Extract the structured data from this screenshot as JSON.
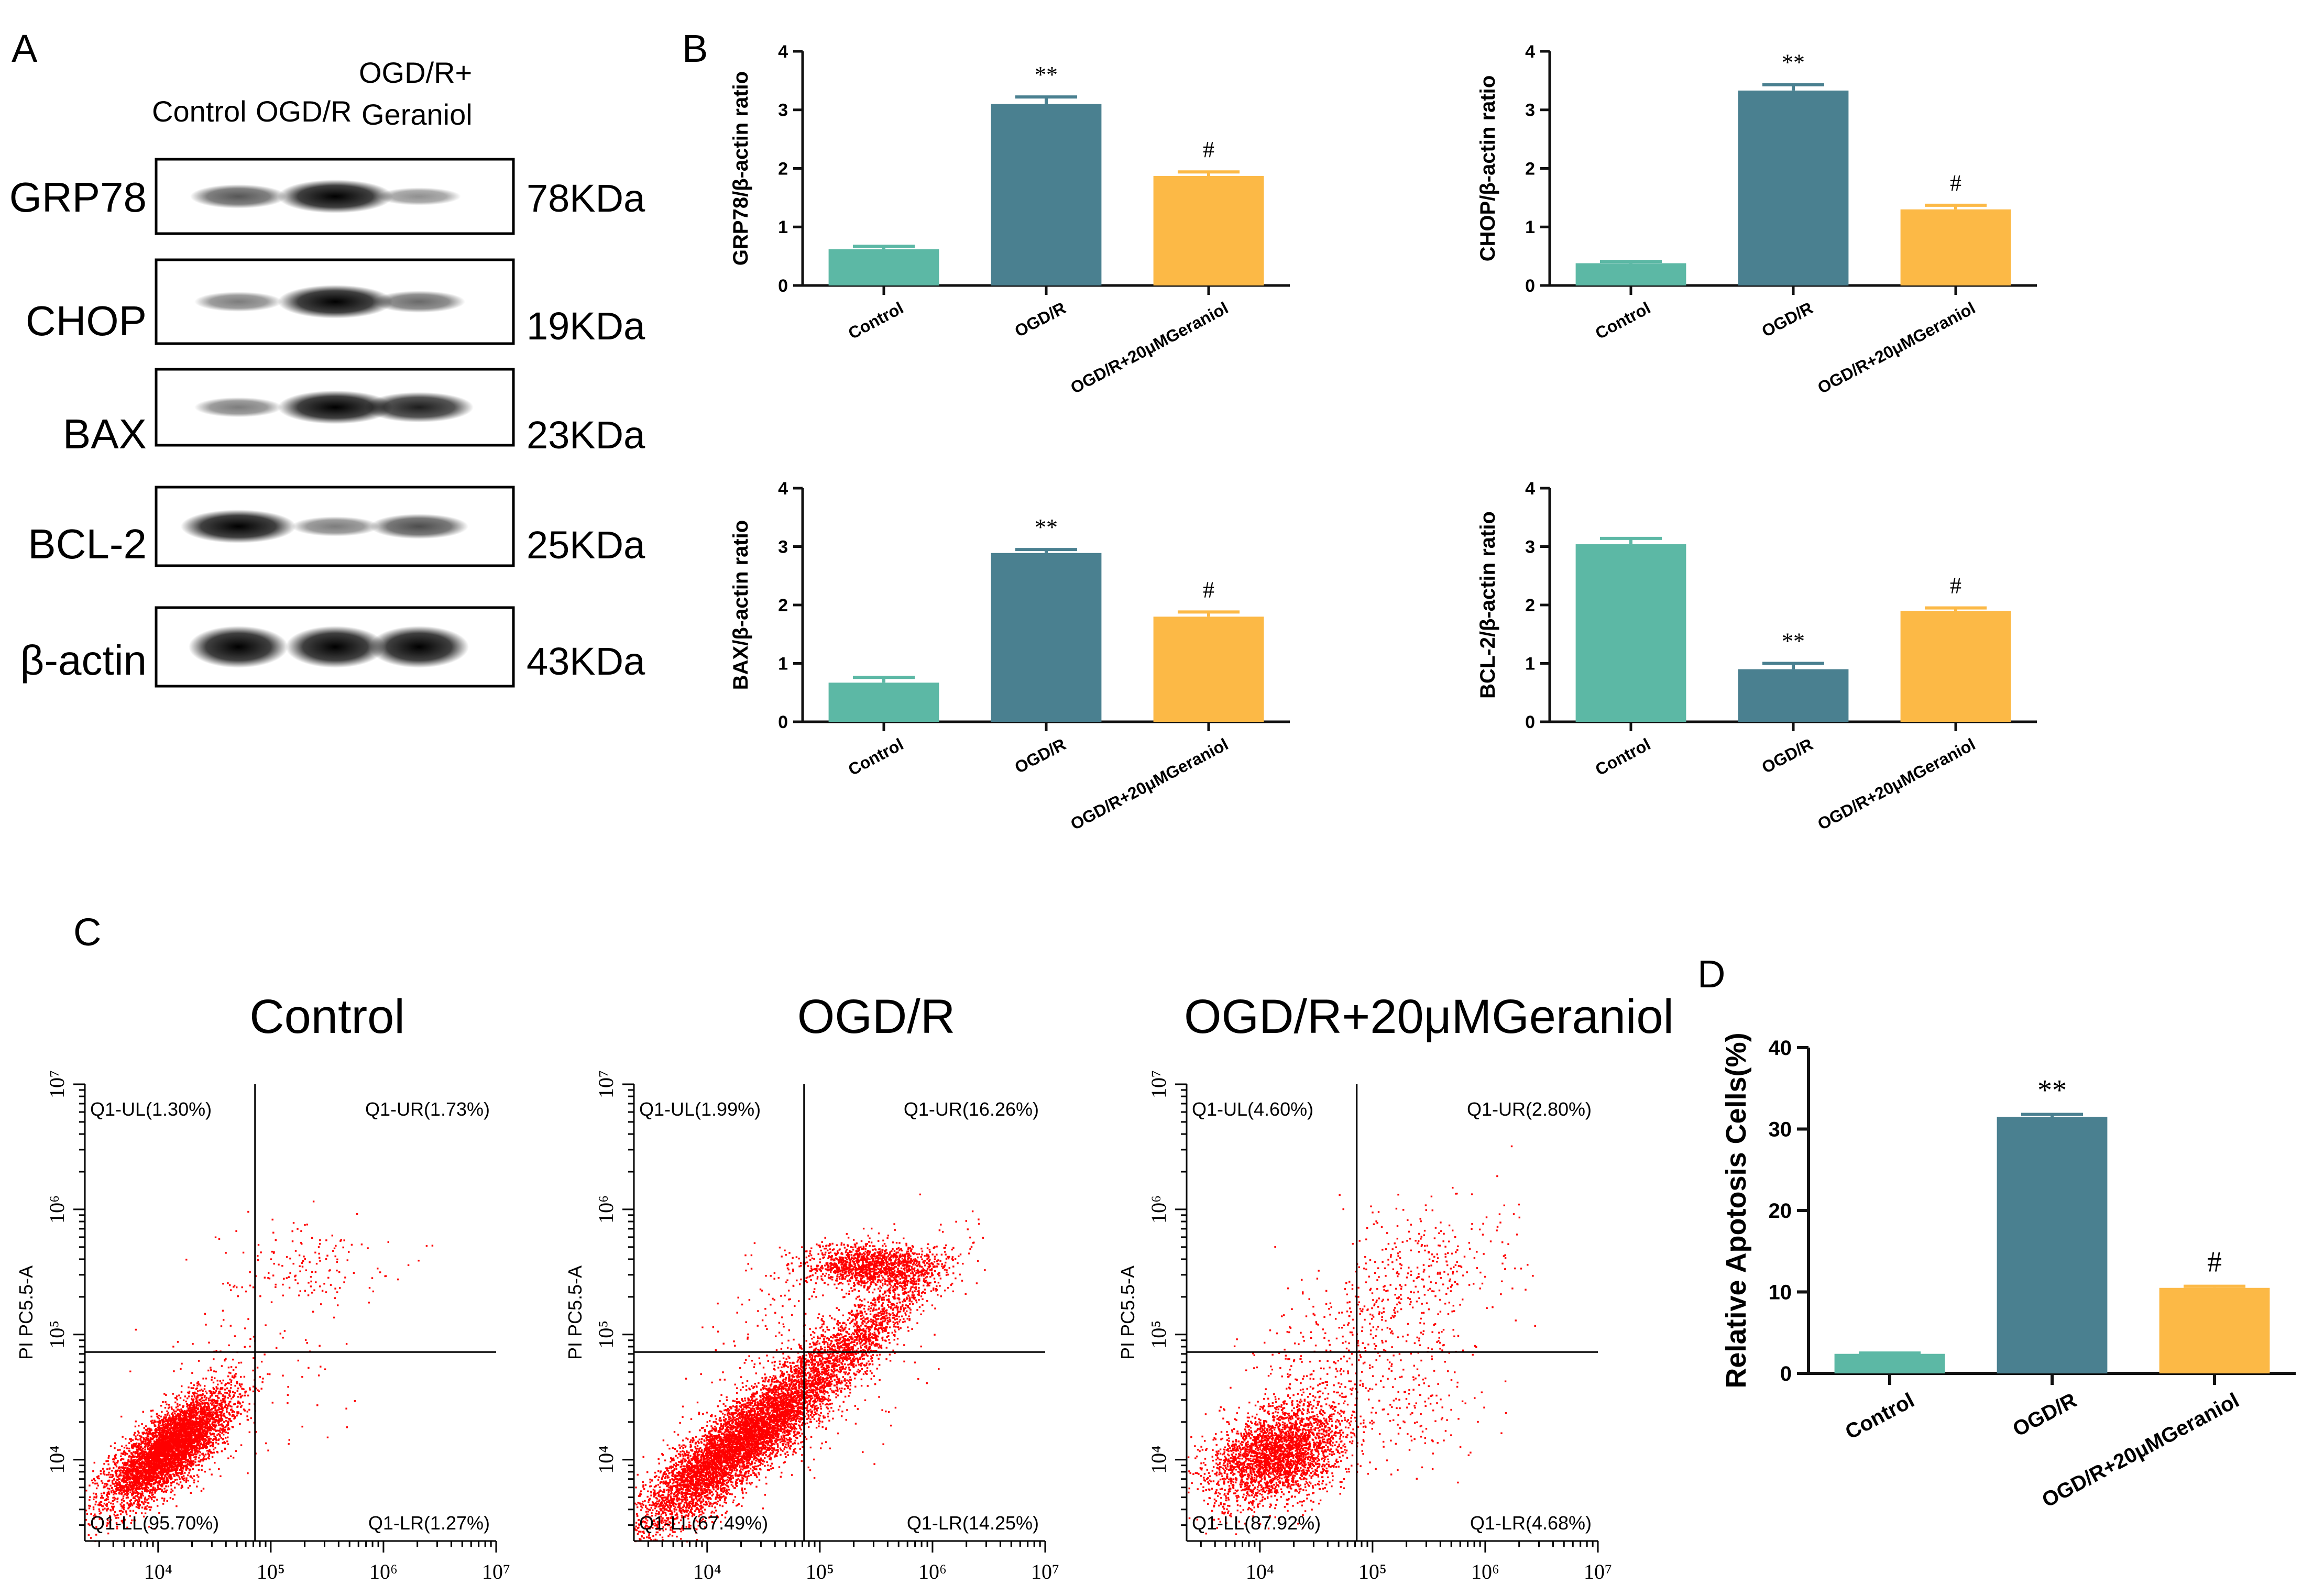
{
  "panel_letters": [
    "A",
    "B",
    "C",
    "D"
  ],
  "colors": {
    "control": "#5cb8a5",
    "ogdr": "#4a8090",
    "geraniol": "#fcb946",
    "dots": "#ff0000",
    "axis": "#111111"
  },
  "western_blot": {
    "lanes": [
      "Control",
      "OGD/R",
      "OGD/R+",
      "Geraniol"
    ],
    "bands": [
      {
        "protein": "GRP78",
        "weight": "78KDa",
        "intensity": [
          0.55,
          1.0,
          0.25
        ]
      },
      {
        "protein": "CHOP",
        "weight": "19KDa",
        "intensity": [
          0.35,
          1.0,
          0.45
        ]
      },
      {
        "protein": "BAX",
        "weight": "23KDa",
        "intensity": [
          0.35,
          1.0,
          0.85
        ]
      },
      {
        "protein": "BCL-2",
        "weight": "25KDa",
        "intensity": [
          1.0,
          0.35,
          0.6
        ]
      },
      {
        "protein": "β-actin",
        "weight": "43KDa",
        "intensity": [
          1.0,
          1.0,
          1.0
        ]
      }
    ]
  },
  "chart_data": [
    {
      "type": "bar",
      "ylabel": "GRP78/β-actin ratio",
      "categories": [
        "Control",
        "OGD/R",
        "OGD/R+20μMGeraniol"
      ],
      "values": [
        0.62,
        3.1,
        1.87
      ],
      "errors": [
        0.05,
        0.12,
        0.07
      ],
      "marks": [
        "",
        "**",
        "#"
      ],
      "ylim": [
        0,
        4
      ],
      "yticks": [
        "0",
        "1",
        "2",
        "3",
        "4"
      ]
    },
    {
      "type": "bar",
      "ylabel": "CHOP/β-actin ratio",
      "categories": [
        "Control",
        "OGD/R",
        "OGD/R+20μMGeraniol"
      ],
      "values": [
        0.38,
        3.33,
        1.3
      ],
      "errors": [
        0.03,
        0.1,
        0.07
      ],
      "marks": [
        "",
        "**",
        "#"
      ],
      "ylim": [
        0,
        4
      ],
      "yticks": [
        "0",
        "1",
        "2",
        "3",
        "4"
      ]
    },
    {
      "type": "bar",
      "ylabel": "BAX/β-actin ratio",
      "categories": [
        "Control",
        "OGD/R",
        "OGD/R+20μMGeraniol"
      ],
      "values": [
        0.67,
        2.89,
        1.8
      ],
      "errors": [
        0.09,
        0.06,
        0.08
      ],
      "marks": [
        "",
        "**",
        "#"
      ],
      "ylim": [
        0,
        4
      ],
      "yticks": [
        "0",
        "1",
        "2",
        "3",
        "4"
      ]
    },
    {
      "type": "bar",
      "ylabel": "BCL-2/β-actin ratio",
      "categories": [
        "Control",
        "OGD/R",
        "OGD/R+20μMGeraniol"
      ],
      "values": [
        3.04,
        0.9,
        1.9
      ],
      "errors": [
        0.1,
        0.1,
        0.05
      ],
      "marks": [
        "",
        "**",
        "#"
      ],
      "ylim": [
        0,
        4
      ],
      "yticks": [
        "0",
        "1",
        "2",
        "3",
        "4"
      ]
    },
    {
      "type": "bar",
      "ylabel": "Relative Apotosis Cells(%)",
      "categories": [
        "Control",
        "OGD/R",
        "OGD/R+20μMGeraniol"
      ],
      "values": [
        2.4,
        31.5,
        10.5
      ],
      "errors": [
        0.1,
        0.3,
        0.2
      ],
      "marks": [
        "",
        "**",
        "#"
      ],
      "ylim": [
        0,
        40
      ],
      "yticks": [
        "0",
        "10",
        "20",
        "30",
        "40"
      ]
    },
    {
      "type": "scatter",
      "title": "Control",
      "ylabel": "PI PC5.5-A",
      "xticks": [
        "10⁴",
        "10⁵",
        "10⁶",
        "10⁷"
      ],
      "yticks": [
        "10⁴",
        "10⁵",
        "10⁶",
        "10⁷"
      ],
      "quadrants": {
        "UL": "Q1-UL(1.30%)",
        "UR": "Q1-UR(1.73%)",
        "LL": "Q1-LL(95.70%)",
        "LR": "Q1-LR(1.27%)"
      },
      "populations": [
        {
          "x": 4.1,
          "y": 4.1,
          "sx": 0.27,
          "sy": 0.22,
          "rho": 0.75,
          "n": 5200
        },
        {
          "x": 5.3,
          "y": 5.6,
          "sx": 0.38,
          "sy": 0.16,
          "rho": 0.0,
          "n": 140
        },
        {
          "x": 4.7,
          "y": 4.7,
          "sx": 0.45,
          "sy": 0.45,
          "rho": 0.3,
          "n": 130
        }
      ]
    },
    {
      "type": "scatter",
      "title": "OGD/R",
      "ylabel": "PI PC5.5-A",
      "xticks": [
        "10⁴",
        "10⁵",
        "10⁶",
        "10⁷"
      ],
      "yticks": [
        "10⁴",
        "10⁵",
        "10⁶",
        "10⁷"
      ],
      "quadrants": {
        "UL": "Q1-UL(1.99%)",
        "UR": "Q1-UR(16.26%)",
        "LL": "Q1-LL(67.49%)",
        "LR": "Q1-LR(14.25%)"
      },
      "populations": [
        {
          "x": 4.3,
          "y": 4.15,
          "sx": 0.45,
          "sy": 0.35,
          "rho": 0.88,
          "n": 6500
        },
        {
          "x": 5.45,
          "y": 5.55,
          "sx": 0.3,
          "sy": 0.09,
          "rho": 0.0,
          "n": 1400
        },
        {
          "x": 5.35,
          "y": 5.0,
          "sx": 0.38,
          "sy": 0.32,
          "rho": 0.9,
          "n": 1400
        },
        {
          "x": 4.85,
          "y": 4.85,
          "sx": 0.5,
          "sy": 0.5,
          "rho": 0.3,
          "n": 300
        }
      ]
    },
    {
      "type": "scatter",
      "title": "OGD/R+20μMGeraniol",
      "ylabel": "PI PC5.5-A",
      "xticks": [
        "10⁴",
        "10⁵",
        "10⁶",
        "10⁷"
      ],
      "yticks": [
        "10⁴",
        "10⁵",
        "10⁶",
        "10⁷"
      ],
      "quadrants": {
        "UL": "Q1-UL(4.60%)",
        "UR": "Q1-UR(2.80%)",
        "LL": "Q1-LL(87.92%)",
        "LR": "Q1-LR(4.68%)"
      },
      "populations": [
        {
          "x": 4.15,
          "y": 4.05,
          "sx": 0.3,
          "sy": 0.2,
          "rho": 0.4,
          "n": 3000
        },
        {
          "x": 4.75,
          "y": 4.85,
          "sx": 0.45,
          "sy": 0.5,
          "rho": 0.55,
          "n": 500
        },
        {
          "x": 5.55,
          "y": 5.55,
          "sx": 0.35,
          "sy": 0.25,
          "rho": 0.0,
          "n": 200
        },
        {
          "x": 5.4,
          "y": 4.5,
          "sx": 0.3,
          "sy": 0.3,
          "rho": 0.0,
          "n": 160
        }
      ]
    }
  ]
}
